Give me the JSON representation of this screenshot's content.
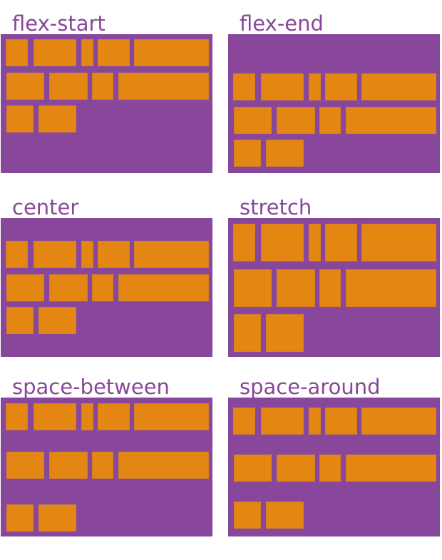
{
  "colors": {
    "container": "#88479a",
    "item": "#e38612",
    "label": "#88479a"
  },
  "panels": [
    {
      "label": "flex-start"
    },
    {
      "label": "flex-end"
    },
    {
      "label": "center"
    },
    {
      "label": "stretch"
    },
    {
      "label": "space-between"
    },
    {
      "label": "space-around"
    }
  ]
}
